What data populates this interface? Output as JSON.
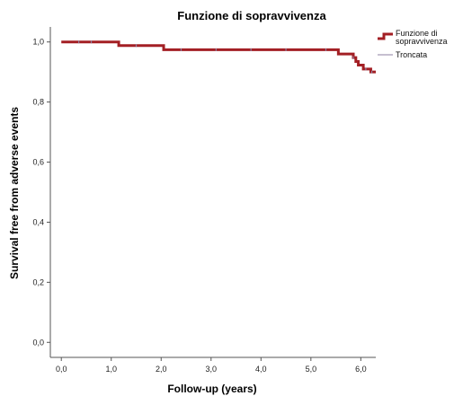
{
  "chart_data": {
    "type": "line",
    "title": "Funzione di sopravvivenza",
    "xlabel": "Follow-up (years)",
    "ylabel": "Survival free from adverse events",
    "xlim": [
      -0.22,
      6.3
    ],
    "ylim": [
      -0.05,
      1.05
    ],
    "x_ticks": [
      0.0,
      1.0,
      2.0,
      3.0,
      4.0,
      5.0,
      6.0
    ],
    "x_tick_labels": [
      "0,0",
      "1,0",
      "2,0",
      "3,0",
      "4,0",
      "5,0",
      "6,0"
    ],
    "y_ticks": [
      0.0,
      0.2,
      0.4,
      0.6,
      0.8,
      1.0
    ],
    "y_tick_labels": [
      "0,0",
      "0,2",
      "0,4",
      "0,6",
      "0,8",
      "1,0"
    ],
    "grid": false,
    "legend_position": "top-right",
    "series": [
      {
        "name": "Funzione di sopravvivenza",
        "step": true,
        "color": "#a31f24",
        "x": [
          0.0,
          1.15,
          2.05,
          5.2,
          5.55,
          5.85,
          5.9,
          5.95,
          6.05,
          6.2,
          6.3
        ],
        "y": [
          1.0,
          0.988,
          0.974,
          0.974,
          0.96,
          0.948,
          0.935,
          0.923,
          0.91,
          0.9,
          0.9
        ]
      }
    ],
    "censored_label": "Troncata",
    "censored_color": "#8c7fa0",
    "censored_x": [
      0.35,
      0.6,
      1.5,
      2.4,
      3.1,
      3.8,
      4.5,
      5.3,
      5.85,
      6.1,
      6.22
    ]
  }
}
